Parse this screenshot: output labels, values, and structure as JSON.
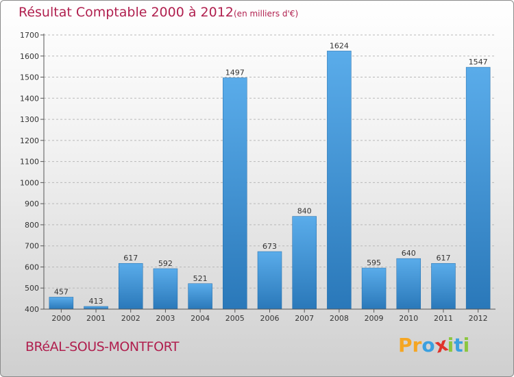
{
  "header": {
    "title": "Résultat Comptable 2000 à 2012",
    "subtitle": "(en milliers d'€)"
  },
  "footer": {
    "town": "BRéAL-SOUS-MONTFORT",
    "brand_letters": [
      {
        "ch": "P",
        "color": "#f5a623"
      },
      {
        "ch": "r",
        "color": "#f5a623"
      },
      {
        "ch": "o",
        "color": "#3aa0e0"
      },
      {
        "ch": "x",
        "color": "#e0342b"
      },
      {
        "ch": "i",
        "color": "#8cc63f"
      },
      {
        "ch": "t",
        "color": "#3aa0e0"
      },
      {
        "ch": "i",
        "color": "#8cc63f"
      }
    ]
  },
  "chart_data": {
    "type": "bar",
    "title": "Résultat Comptable 2000 à 2012",
    "subtitle": "(en milliers d'€)",
    "xlabel": "",
    "ylabel": "",
    "categories": [
      "2000",
      "2001",
      "2002",
      "2003",
      "2004",
      "2005",
      "2006",
      "2007",
      "2008",
      "2009",
      "2010",
      "2011",
      "2012"
    ],
    "values": [
      457,
      413,
      617,
      592,
      521,
      1497,
      673,
      840,
      1624,
      595,
      640,
      617,
      1547
    ],
    "ylim": [
      400,
      1700
    ],
    "yticks": [
      400,
      500,
      600,
      700,
      800,
      900,
      1000,
      1100,
      1200,
      1300,
      1400,
      1500,
      1600,
      1700
    ],
    "grid": true,
    "colors": {
      "bar_top": "#5aacea",
      "bar_bottom": "#2a78b9",
      "grid": "#b8b8b8",
      "axis": "#555555"
    }
  }
}
